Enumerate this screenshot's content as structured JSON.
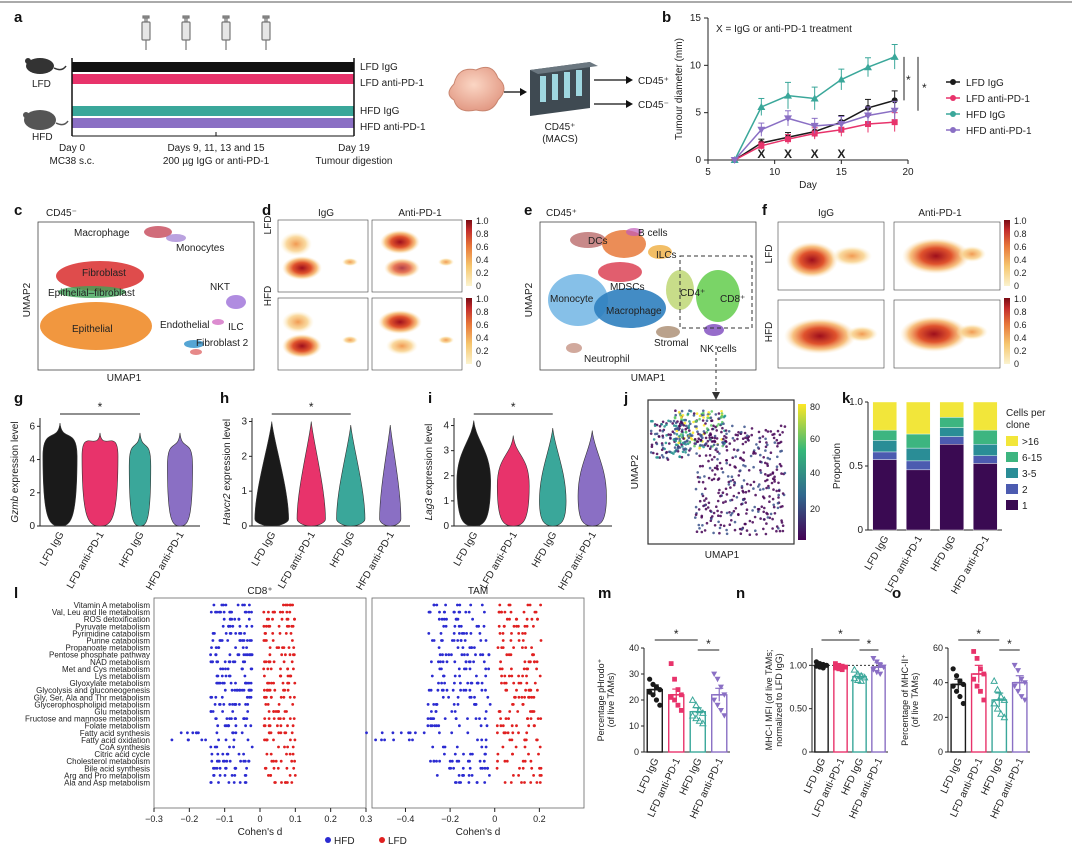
{
  "panel_labels": [
    "a",
    "b",
    "c",
    "d",
    "e",
    "f",
    "g",
    "h",
    "i",
    "j",
    "k",
    "l",
    "m",
    "n",
    "o"
  ],
  "colors": {
    "lfd_igg": "#1a1a1a",
    "lfd_antipd1": "#e8336b",
    "hfd_igg": "#3aa79a",
    "hfd_antipd1": "#8a6fc4",
    "hfd_dot": "#2b2bd1",
    "lfd_dot": "#e02020"
  },
  "panel_a": {
    "mouse_labels": [
      "LFD",
      "HFD"
    ],
    "bar_labels": [
      "LFD IgG",
      "LFD anti-PD-1",
      "HFD IgG",
      "HFD anti-PD-1"
    ],
    "timeline": [
      {
        "line1": "Day 0",
        "line2": "MC38 s.c."
      },
      {
        "line1": "Days 9, 11, 13 and 15",
        "line2": "200 µg IgG or anti-PD-1"
      },
      {
        "line1": "Day 19",
        "line2": "Tumour digestion"
      }
    ],
    "macs_label_1": "CD45⁺",
    "macs_label_2": "(MACS)",
    "outputs": [
      "CD45⁺",
      "CD45⁻"
    ]
  },
  "panel_b": {
    "note": "X = IgG or anti-PD-1 treatment",
    "stars": [
      "*",
      "*"
    ],
    "treatment_marks": "X"
  },
  "panel_c": {
    "title": "CD45⁻",
    "clusters": [
      "Macrophage",
      "Monocytes",
      "Fibroblast",
      "Epithelial–fibroblast",
      "NKT",
      "Epithelial",
      "Endothelial",
      "ILC",
      "Fibroblast 2"
    ],
    "xlabel": "UMAP1",
    "ylabel": "UMAP2"
  },
  "panel_d": {
    "cols": [
      "IgG",
      "Anti-PD-1"
    ],
    "rows": [
      "LFD",
      "HFD"
    ],
    "scale": [
      "1.0",
      "0.8",
      "0.6",
      "0.4",
      "0.2",
      "0"
    ]
  },
  "panel_e": {
    "title": "CD45⁺",
    "clusters": [
      "B cells",
      "DCs",
      "ILCs",
      "MDSCs",
      "CD4⁺",
      "CD8⁺",
      "Monocyte",
      "Macrophage",
      "Stromal",
      "NK cells",
      "Neutrophil"
    ],
    "xlabel": "UMAP1",
    "ylabel": "UMAP2"
  },
  "panel_f": {
    "cols": [
      "IgG",
      "Anti-PD-1"
    ],
    "rows": [
      "LFD",
      "HFD"
    ],
    "scale": [
      "1.0",
      "0.8",
      "0.6",
      "0.4",
      "0.2",
      "0"
    ]
  },
  "panel_ghi": {
    "genes": [
      "Gzmb",
      "Havcr2",
      "Lag3"
    ],
    "ylabel_suffix": " expression level",
    "groups": [
      "LFD IgG",
      "LFD anti-PD-1",
      "HFD IgG",
      "HFD anti-PD-1"
    ],
    "g_ticks": [
      "0",
      "2",
      "4",
      "6"
    ],
    "h_ticks": [
      "0",
      "1",
      "2",
      "3"
    ],
    "i_ticks": [
      "0",
      "1",
      "2",
      "3",
      "4"
    ],
    "star": "*"
  },
  "panel_j": {
    "xlabel": "UMAP1",
    "ylabel": "UMAP2",
    "scale": [
      "80",
      "60",
      "40",
      "20"
    ]
  },
  "panel_k": {
    "legend_title": "Cells per clone",
    "legend": [
      ">16",
      "6-15",
      "3-5",
      "2",
      "1"
    ],
    "legend_colors": [
      "#f2e63a",
      "#3db580",
      "#2a8d96",
      "#4c5bb0",
      "#3a0a52"
    ],
    "ylabel": "Proportion",
    "ticks": [
      "0",
      "0.5",
      "1.0"
    ]
  },
  "panel_l": {
    "titles": [
      "CD8⁺",
      "TAM"
    ],
    "pathways": [
      "Vitamin A metabolism",
      "Val, Leu and Ile metabolism",
      "ROS detoxification",
      "Pyruvate metabolism",
      "Pyrimidine catabolism",
      "Purine catabolism",
      "Propanoate metabolism",
      "Pentose phosphate pathway",
      "NAD metabolism",
      "Met and Cys metabolism",
      "Lys metabolism",
      "Glyoxylate metabolism",
      "Glycolysis and gluconeogenesis",
      "Gly, Ser, Ala and Thr metabolism",
      "Glycerophospholipid metabolism",
      "Glu metabolism",
      "Fructose and mannose metabolism",
      "Folate metabolism",
      "Fatty acid synthesis",
      "Fatty acid oxidation",
      "CoA synthesis",
      "Citric acid cycle",
      "Cholesterol metabolism",
      "Bile acid synthesis",
      "Arg and Pro metabolism",
      "Ala and Asp metabolism"
    ],
    "cd8_ticks": [
      "−0.3",
      "−0.2",
      "−0.1",
      "0",
      "0.1",
      "0.2",
      "0.3"
    ],
    "tam_ticks": [
      "−0.4",
      "−0.2",
      "0",
      "0.2"
    ],
    "xlabel": "Cohen's d",
    "legend": [
      "HFD",
      "LFD"
    ]
  },
  "panel_mno": {
    "ylabels": [
      [
        "Percentage pHrodo⁺",
        "(of live TAMs)"
      ],
      [
        "MHC-I MFI (of live TAMs;",
        "normalized to LFD IgG)"
      ],
      [
        "Percentage of MHC-II⁺",
        "(of live TAMs)"
      ]
    ],
    "groups": [
      "LFD IgG",
      "LFD anti-PD-1",
      "HFD IgG",
      "HFD anti-PD-1"
    ],
    "m_ticks": [
      "0",
      "10",
      "20",
      "30",
      "40"
    ],
    "n_ticks": [
      "0",
      "0.50",
      "1.00"
    ],
    "o_ticks": [
      "0",
      "20",
      "40",
      "60"
    ],
    "star": "*"
  },
  "chart_data": [
    {
      "type": "line",
      "panel": "b",
      "title": "",
      "xlabel": "Day",
      "ylabel": "Tumour diameter (mm)",
      "xlim": [
        5,
        20
      ],
      "ylim": [
        0,
        15
      ],
      "xticks": [
        5,
        10,
        15,
        20
      ],
      "yticks": [
        0,
        5,
        10,
        15
      ],
      "x": [
        7,
        9,
        11,
        13,
        15,
        17,
        19
      ],
      "treatment_days": [
        9,
        11,
        13,
        15
      ],
      "series": [
        {
          "name": "LFD IgG",
          "values": [
            0,
            1.8,
            2.4,
            3.0,
            4.0,
            5.5,
            6.3
          ],
          "err": [
            0,
            0.4,
            0.5,
            0.6,
            0.7,
            0.9,
            1.0
          ]
        },
        {
          "name": "LFD anti-PD-1",
          "values": [
            0,
            1.5,
            2.2,
            2.8,
            3.2,
            3.8,
            4.0
          ],
          "err": [
            0,
            0.4,
            0.5,
            0.6,
            0.7,
            0.9,
            1.0
          ]
        },
        {
          "name": "HFD IgG",
          "values": [
            0,
            5.6,
            6.8,
            6.5,
            8.5,
            9.8,
            10.9
          ],
          "err": [
            0,
            0.9,
            1.4,
            1.2,
            1.1,
            1.0,
            1.3
          ]
        },
        {
          "name": "HFD anti-PD-1",
          "values": [
            0,
            3.2,
            4.4,
            3.6,
            3.8,
            4.7,
            5.2
          ],
          "err": [
            0,
            0.7,
            0.8,
            0.8,
            0.8,
            0.9,
            1.0
          ]
        }
      ]
    },
    {
      "type": "bar",
      "panel": "k",
      "stacked": true,
      "ylabel": "Proportion",
      "ylim": [
        0,
        1
      ],
      "categories": [
        "LFD IgG",
        "LFD anti-PD-1",
        "HFD IgG",
        "HFD anti-PD-1"
      ],
      "series": [
        {
          "name": "1",
          "values": [
            0.55,
            0.47,
            0.67,
            0.52
          ]
        },
        {
          "name": "2",
          "values": [
            0.06,
            0.07,
            0.06,
            0.06
          ]
        },
        {
          "name": "3-5",
          "values": [
            0.09,
            0.1,
            0.07,
            0.09
          ]
        },
        {
          "name": "6-15",
          "values": [
            0.08,
            0.11,
            0.08,
            0.11
          ]
        },
        {
          "name": ">16",
          "values": [
            0.22,
            0.25,
            0.12,
            0.22
          ]
        }
      ]
    },
    {
      "type": "bar",
      "panel": "m",
      "ylim": [
        0,
        40
      ],
      "categories": [
        "LFD IgG",
        "LFD anti-PD-1",
        "HFD IgG",
        "HFD anti-PD-1"
      ],
      "values": [
        24,
        22,
        15.5,
        22
      ],
      "err": [
        1.8,
        2.2,
        1.5,
        2.5
      ],
      "points": [
        [
          28,
          26,
          25,
          24,
          23,
          22,
          20,
          18
        ],
        [
          34,
          28,
          24,
          22,
          21,
          20,
          18,
          16
        ],
        [
          20,
          18,
          16,
          15,
          14,
          13,
          12,
          11
        ],
        [
          30,
          28,
          25,
          22,
          20,
          18,
          16,
          14
        ]
      ]
    },
    {
      "type": "bar",
      "panel": "n",
      "ylim": [
        0,
        1.2
      ],
      "reference": 1.0,
      "categories": [
        "LFD IgG",
        "LFD anti-PD-1",
        "HFD IgG",
        "HFD anti-PD-1"
      ],
      "values": [
        1.0,
        0.98,
        0.87,
        0.98
      ],
      "err": [
        0.02,
        0.02,
        0.03,
        0.05
      ],
      "points": [
        [
          1.04,
          1.02,
          1.01,
          1.0,
          0.99,
          0.98,
          0.97
        ],
        [
          1.02,
          1.0,
          0.99,
          0.98,
          0.97,
          0.96,
          0.95
        ],
        [
          0.95,
          0.9,
          0.88,
          0.86,
          0.85,
          0.83,
          0.82
        ],
        [
          1.08,
          1.04,
          1.0,
          0.98,
          0.95,
          0.92,
          0.9
        ]
      ]
    },
    {
      "type": "bar",
      "panel": "o",
      "ylim": [
        0,
        60
      ],
      "categories": [
        "LFD IgG",
        "LFD anti-PD-1",
        "HFD IgG",
        "HFD anti-PD-1"
      ],
      "values": [
        39,
        45,
        30,
        40
      ],
      "err": [
        3,
        5,
        4,
        4
      ],
      "points": [
        [
          48,
          44,
          41,
          39,
          38,
          35,
          32,
          28
        ],
        [
          58,
          54,
          48,
          45,
          42,
          38,
          35,
          30
        ],
        [
          41,
          36,
          32,
          30,
          28,
          25,
          22,
          20
        ],
        [
          50,
          47,
          42,
          40,
          38,
          35,
          32,
          30
        ]
      ]
    }
  ]
}
